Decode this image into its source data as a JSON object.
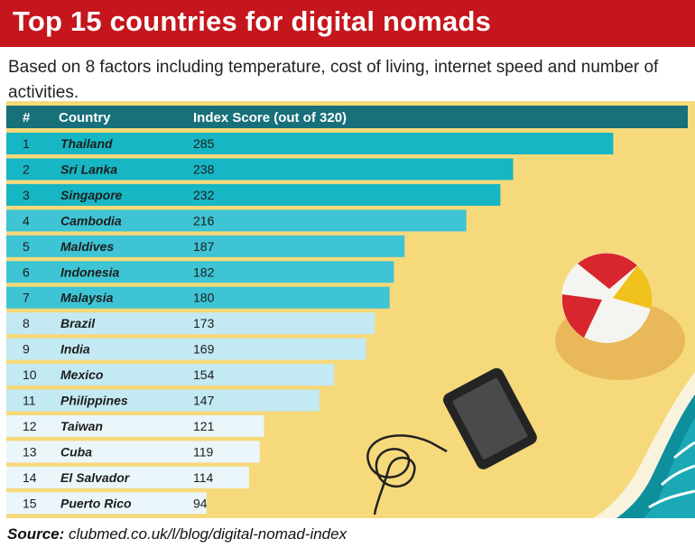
{
  "header": {
    "title": "Top 15 countries for digital nomads"
  },
  "subtitle": "Based on 8 factors including temperature, cost of living, internet speed and number of activities.",
  "source": {
    "label": "Source:",
    "text": "clubmed.co.uk/l/blog/digital-nomad-index"
  },
  "colors": {
    "header_bg": "#c4161c",
    "sand": "#f6d97a",
    "table_header": "#17707a",
    "tier1": "#17b6c4",
    "tier2": "#3ec4d4",
    "tier3": "#c3e9f2",
    "tier4": "#eaf6fa"
  },
  "chart_data": {
    "type": "bar",
    "orientation": "horizontal",
    "columns": [
      "#",
      "Country",
      "Index Score (out of 320)"
    ],
    "max": 320,
    "rows": [
      {
        "rank": "1",
        "country": "Thailand",
        "score": 285
      },
      {
        "rank": "2",
        "country": "Sri Lanka",
        "score": 238
      },
      {
        "rank": "3",
        "country": "Singapore",
        "score": 232
      },
      {
        "rank": "4",
        "country": "Cambodia",
        "score": 216
      },
      {
        "rank": "5",
        "country": "Maldives",
        "score": 187
      },
      {
        "rank": "6",
        "country": "Indonesia",
        "score": 182
      },
      {
        "rank": "7",
        "country": "Malaysia",
        "score": 180
      },
      {
        "rank": "8",
        "country": "Brazil",
        "score": 173
      },
      {
        "rank": "9",
        "country": "India",
        "score": 169
      },
      {
        "rank": "10",
        "country": "Mexico",
        "score": 154
      },
      {
        "rank": "11",
        "country": "Philippines",
        "score": 147
      },
      {
        "rank": "12",
        "country": "Taiwan",
        "score": 121
      },
      {
        "rank": "13",
        "country": "Cuba",
        "score": 119
      },
      {
        "rank": "14",
        "country": "El Salvador",
        "score": 114
      },
      {
        "rank": "15",
        "country": "Puerto Rico",
        "score": 94
      }
    ]
  }
}
